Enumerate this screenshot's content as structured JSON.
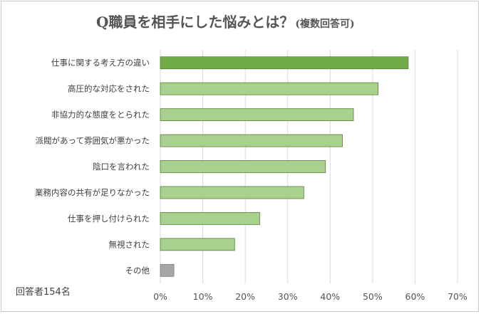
{
  "chart_data": {
    "type": "bar",
    "orientation": "horizontal",
    "title": "Q職員を相手にした悩みとは？",
    "subtitle": "(複数回答可)",
    "note": "回答者154名",
    "categories": [
      "仕事に関する考え方の違い",
      "高圧的な対応をされた",
      "非協力的な態度をとられた",
      "派閥があって雰囲気が悪かった",
      "陰口を言われた",
      "業務内容の共有が足りなかった",
      "仕事を押し付けられた",
      "無視された",
      "その他"
    ],
    "values": [
      58.4,
      51.3,
      45.5,
      42.9,
      38.9,
      33.8,
      23.4,
      17.5,
      3.2
    ],
    "value_unit": "%",
    "xlim": [
      0,
      70
    ],
    "xticks": [
      "0%",
      "10%",
      "20%",
      "30%",
      "40%",
      "50%",
      "60%",
      "70%"
    ],
    "grid": "vertical",
    "colors": {
      "highlight": "#70ad47",
      "default": "#a9d18e",
      "other": "#a5a5a5",
      "border": "#5a7d3a",
      "grid": "#d9d9d9"
    }
  }
}
